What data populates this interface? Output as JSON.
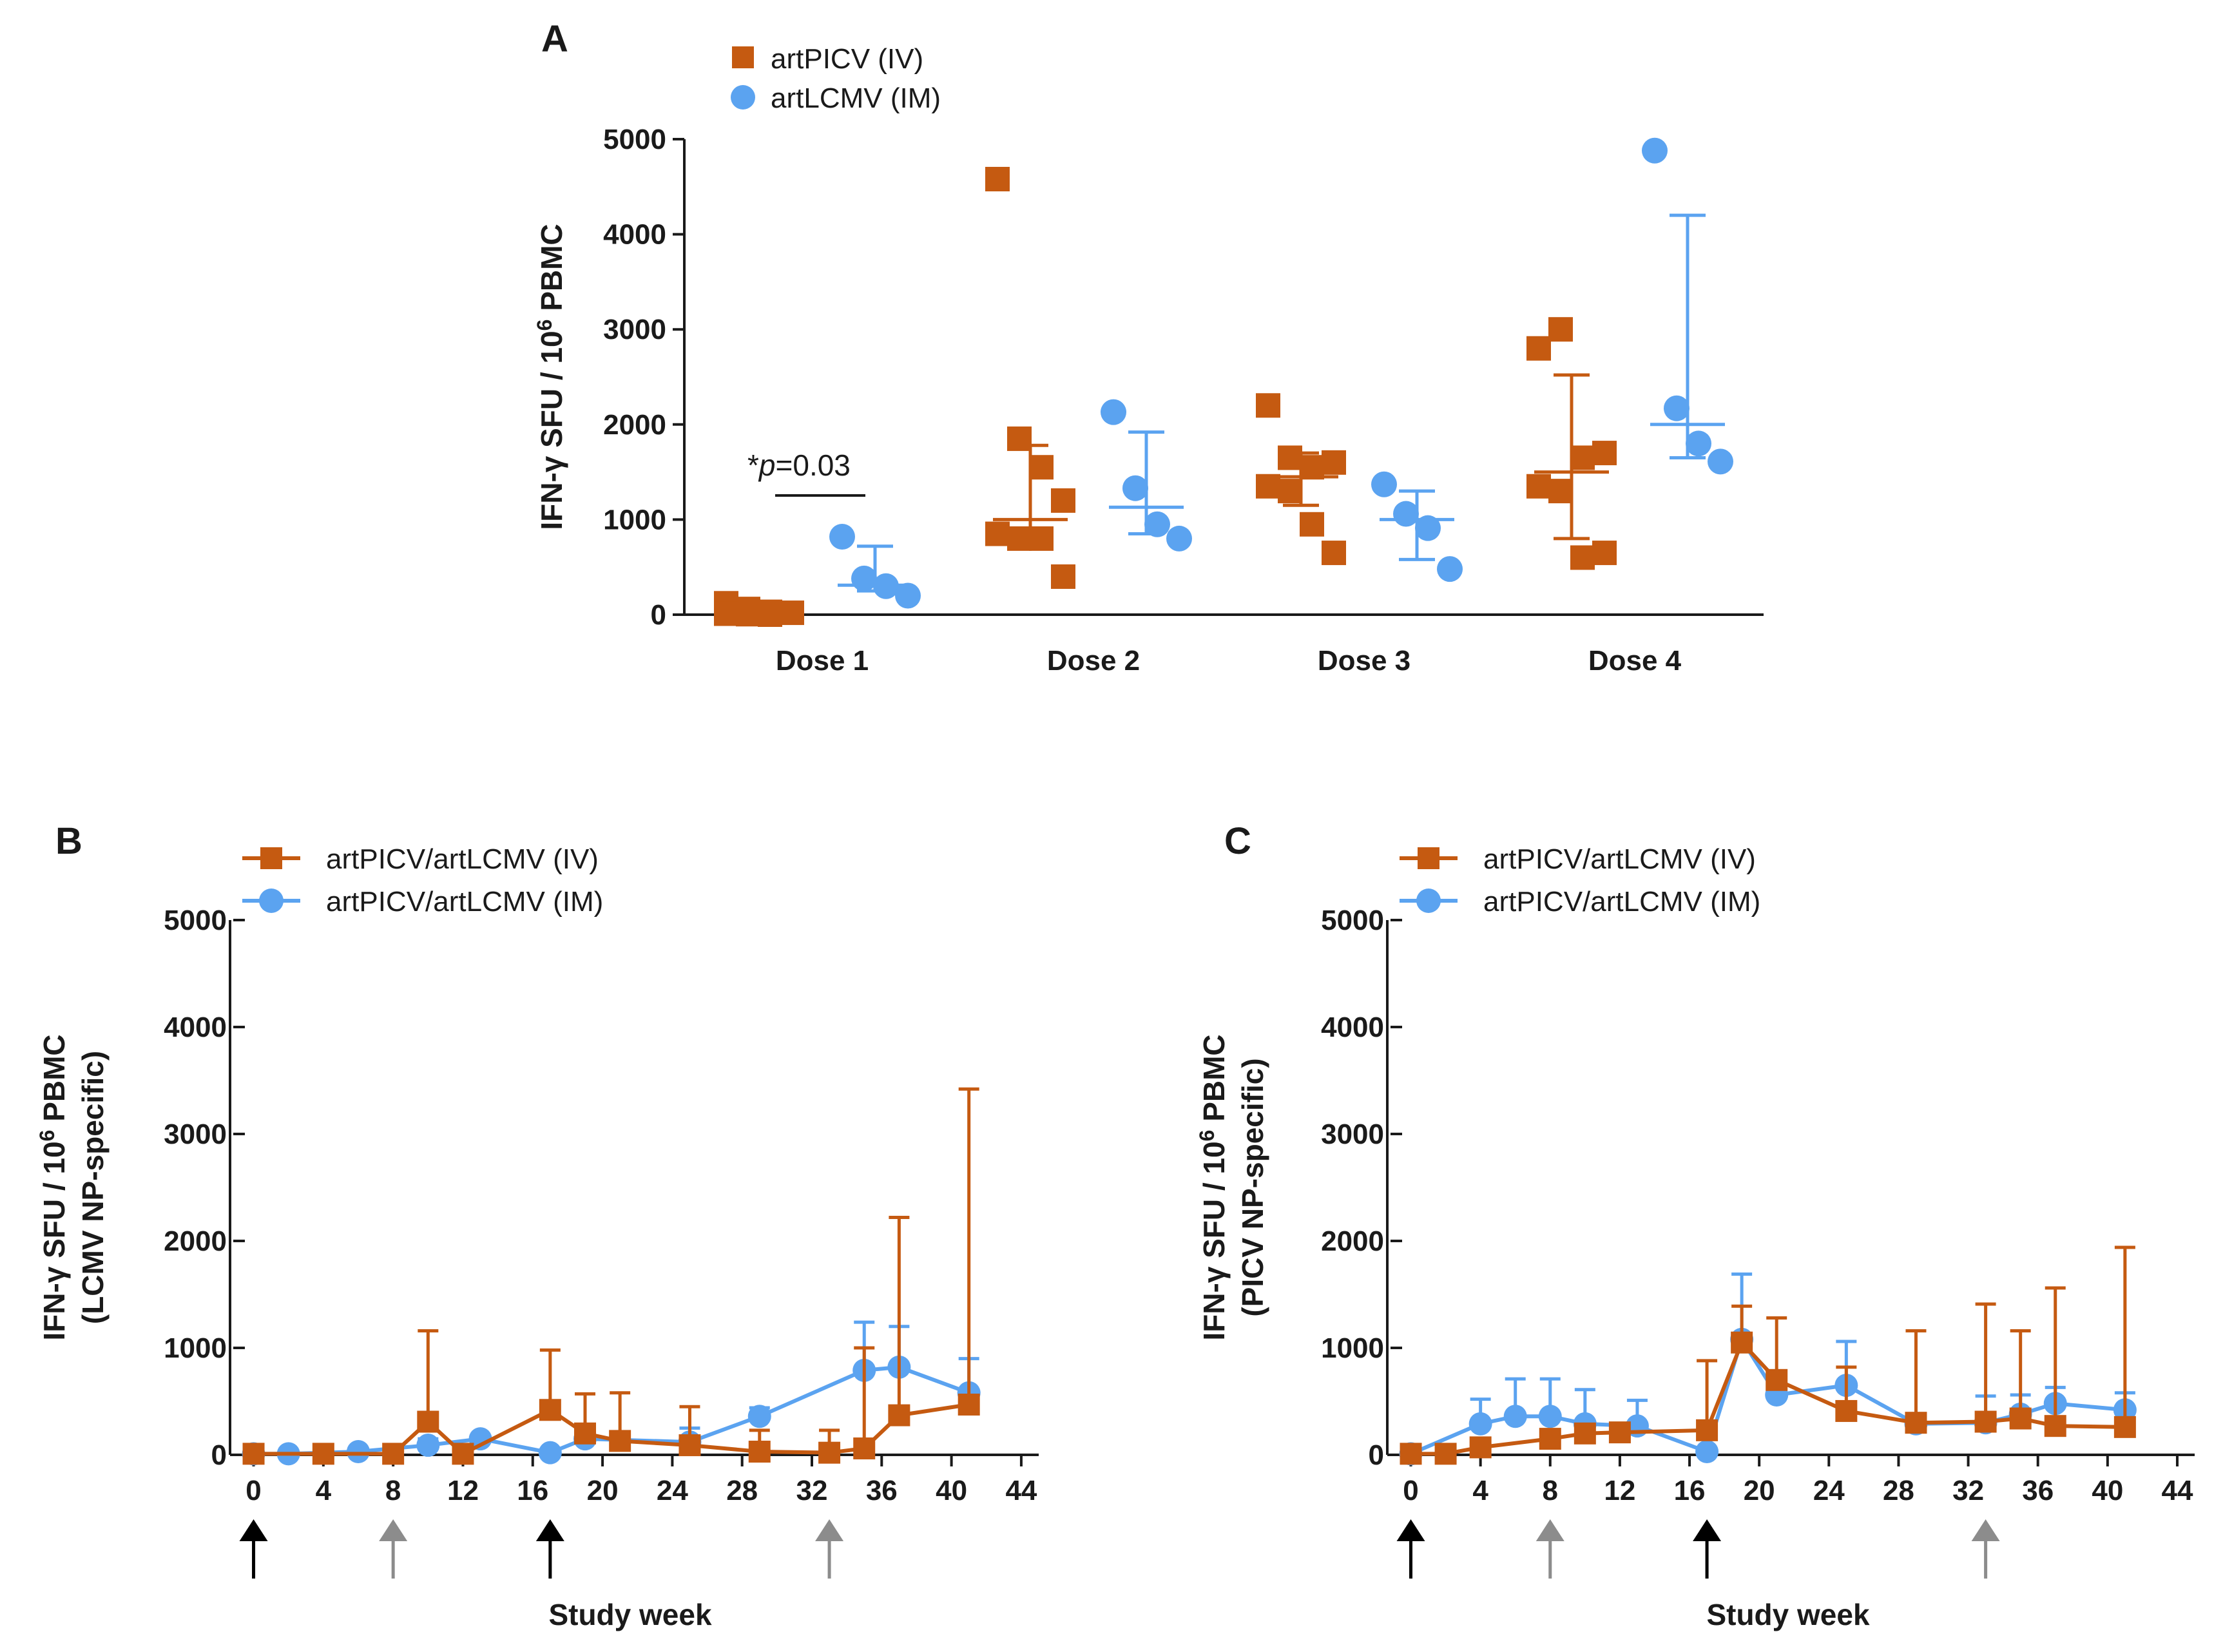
{
  "colors": {
    "iv": "#C55A11",
    "im": "#5BA3F0",
    "axis": "#1a1a1a",
    "arrow_black": "#000000",
    "arrow_gray": "#8C8C8C"
  },
  "chart_data": [
    {
      "id": "A",
      "type": "scatter",
      "panel_label": "A",
      "xlabel": "",
      "ylabel": "IFN-γ SFU / 10⁶ PBMC",
      "ylim": [
        0,
        5000
      ],
      "yticks": [
        0,
        1000,
        2000,
        3000,
        4000,
        5000
      ],
      "categories": [
        "Dose 1",
        "Dose 2",
        "Dose 3",
        "Dose 4"
      ],
      "series": [
        {
          "name": "artPICV (IV)",
          "marker": "square",
          "groups": [
            {
              "points": [
                120,
                60,
                30,
                20,
                10,
                5,
                0
              ],
              "mean": 30,
              "err_low": 0,
              "err_high": 80
            },
            {
              "points": [
                4580,
                1850,
                1550,
                1200,
                850,
                800,
                800,
                400
              ],
              "mean": 1000,
              "err_low": 800,
              "err_high": 1780
            },
            {
              "points": [
                2200,
                1650,
                1550,
                1600,
                1350,
                1300,
                950,
                650
              ],
              "mean": 1450,
              "err_low": 1150,
              "err_high": 1700
            },
            {
              "points": [
                2800,
                3000,
                1650,
                1700,
                1350,
                1300,
                600,
                650
              ],
              "mean": 1500,
              "err_low": 800,
              "err_high": 2520
            }
          ]
        },
        {
          "name": "artLCMV (IM)",
          "marker": "circle",
          "groups": [
            {
              "points": [
                820,
                380,
                300,
                200
              ],
              "mean": 310,
              "err_low": 250,
              "err_high": 720
            },
            {
              "points": [
                2130,
                1330,
                950,
                800
              ],
              "mean": 1130,
              "err_low": 850,
              "err_high": 1920
            },
            {
              "points": [
                1370,
                1060,
                910,
                480
              ],
              "mean": 1000,
              "err_low": 580,
              "err_high": 1300
            },
            {
              "points": [
                4880,
                2170,
                1800,
                1610
              ],
              "mean": 2000,
              "err_low": 1650,
              "err_high": 4200
            }
          ]
        }
      ],
      "annotation": {
        "prefix": "*",
        "italic": "p",
        "suffix": "=0.03"
      }
    },
    {
      "id": "B",
      "type": "line",
      "panel_label": "B",
      "xlabel": "Study week",
      "ylabel": "IFN-γ SFU / 10⁶ PBMC",
      "ylabel_line2": "(LCMV NP-specific)",
      "xlim": [
        -0.5,
        45
      ],
      "ylim": [
        0,
        5000
      ],
      "xticks": [
        0,
        4,
        8,
        12,
        16,
        20,
        24,
        28,
        32,
        36,
        40,
        44
      ],
      "yticks": [
        0,
        1000,
        2000,
        3000,
        4000,
        5000
      ],
      "series": [
        {
          "name": "artPICV/artLCMV (IV)",
          "marker": "square",
          "points": [
            {
              "x": 0,
              "y": 10,
              "err": 0
            },
            {
              "x": 4,
              "y": 10,
              "err": 0
            },
            {
              "x": 8,
              "y": 10,
              "err": 0
            },
            {
              "x": 10,
              "y": 310,
              "err": 1160
            },
            {
              "x": 12,
              "y": 10,
              "err": 0
            },
            {
              "x": 17,
              "y": 420,
              "err": 980
            },
            {
              "x": 19,
              "y": 200,
              "err": 570
            },
            {
              "x": 21,
              "y": 130,
              "err": 580
            },
            {
              "x": 25,
              "y": 90,
              "err": 450
            },
            {
              "x": 29,
              "y": 30,
              "err": 230
            },
            {
              "x": 33,
              "y": 20,
              "err": 230
            },
            {
              "x": 35,
              "y": 60,
              "err": 1000
            },
            {
              "x": 37,
              "y": 370,
              "err": 2220
            },
            {
              "x": 41,
              "y": 470,
              "err": 3420
            }
          ]
        },
        {
          "name": "artPICV/artLCMV (IM)",
          "marker": "circle",
          "points": [
            {
              "x": 0,
              "y": 10,
              "err": 0
            },
            {
              "x": 2,
              "y": 10,
              "err": 0
            },
            {
              "x": 6,
              "y": 30,
              "err": 0
            },
            {
              "x": 10,
              "y": 90,
              "err": 150
            },
            {
              "x": 13,
              "y": 150,
              "err": 0
            },
            {
              "x": 17,
              "y": 20,
              "err": 0
            },
            {
              "x": 19,
              "y": 150,
              "err": 0
            },
            {
              "x": 25,
              "y": 120,
              "err": 250
            },
            {
              "x": 29,
              "y": 360,
              "err": 440
            },
            {
              "x": 35,
              "y": 790,
              "err": 1240
            },
            {
              "x": 37,
              "y": 820,
              "err": 1200
            },
            {
              "x": 41,
              "y": 580,
              "err": 900
            }
          ]
        }
      ],
      "arrows": [
        {
          "x": 0,
          "color": "black"
        },
        {
          "x": 8,
          "color": "gray"
        },
        {
          "x": 17,
          "color": "black"
        },
        {
          "x": 33,
          "color": "gray"
        }
      ]
    },
    {
      "id": "C",
      "type": "line",
      "panel_label": "C",
      "xlabel": "Study week",
      "ylabel": "IFN-γ  SFU / 10⁶ PBMC",
      "ylabel_line2": "(PICV NP-specific)",
      "xlim": [
        -0.5,
        45
      ],
      "ylim": [
        0,
        5000
      ],
      "xticks": [
        0,
        4,
        8,
        12,
        16,
        20,
        24,
        28,
        32,
        36,
        40,
        44
      ],
      "yticks": [
        0,
        1000,
        2000,
        3000,
        4000,
        5000
      ],
      "series": [
        {
          "name": "artPICV/artLCMV (IV)",
          "marker": "square",
          "points": [
            {
              "x": 0,
              "y": 10,
              "err": 0
            },
            {
              "x": 2,
              "y": 10,
              "err": 0
            },
            {
              "x": 4,
              "y": 70,
              "err": 0
            },
            {
              "x": 8,
              "y": 150,
              "err": 0
            },
            {
              "x": 10,
              "y": 200,
              "err": 0
            },
            {
              "x": 12,
              "y": 210,
              "err": 0
            },
            {
              "x": 17,
              "y": 230,
              "err": 880
            },
            {
              "x": 19,
              "y": 1050,
              "err": 1390
            },
            {
              "x": 21,
              "y": 700,
              "err": 1280
            },
            {
              "x": 25,
              "y": 410,
              "err": 820
            },
            {
              "x": 29,
              "y": 300,
              "err": 1160
            },
            {
              "x": 33,
              "y": 310,
              "err": 1410
            },
            {
              "x": 35,
              "y": 340,
              "err": 1160
            },
            {
              "x": 37,
              "y": 270,
              "err": 1560
            },
            {
              "x": 41,
              "y": 260,
              "err": 1940
            }
          ]
        },
        {
          "name": "artPICV/artLCMV (IM)",
          "marker": "circle",
          "points": [
            {
              "x": 0,
              "y": 10,
              "err": 0
            },
            {
              "x": 4,
              "y": 290,
              "err": 520
            },
            {
              "x": 6,
              "y": 360,
              "err": 710
            },
            {
              "x": 8,
              "y": 360,
              "err": 710
            },
            {
              "x": 10,
              "y": 290,
              "err": 610
            },
            {
              "x": 13,
              "y": 270,
              "err": 510
            },
            {
              "x": 17,
              "y": 30,
              "err": 0
            },
            {
              "x": 19,
              "y": 1080,
              "err": 1690
            },
            {
              "x": 21,
              "y": 560,
              "err": 740
            },
            {
              "x": 25,
              "y": 650,
              "err": 1060
            },
            {
              "x": 29,
              "y": 290,
              "err": 310
            },
            {
              "x": 33,
              "y": 300,
              "err": 550
            },
            {
              "x": 35,
              "y": 380,
              "err": 560
            },
            {
              "x": 37,
              "y": 480,
              "err": 630
            },
            {
              "x": 41,
              "y": 420,
              "err": 580
            }
          ]
        }
      ],
      "arrows": [
        {
          "x": 0,
          "color": "black"
        },
        {
          "x": 8,
          "color": "gray"
        },
        {
          "x": 17,
          "color": "black"
        },
        {
          "x": 33,
          "color": "gray"
        }
      ]
    }
  ]
}
